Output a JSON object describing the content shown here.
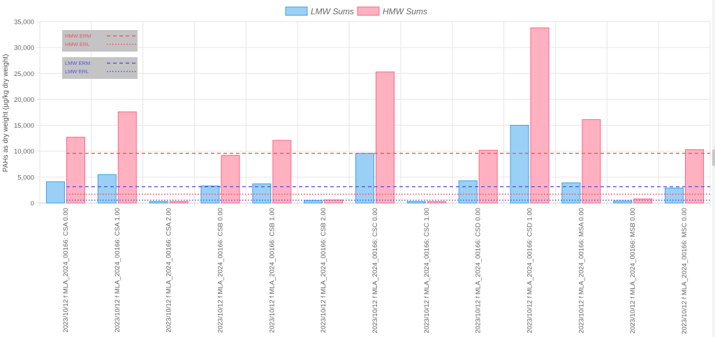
{
  "chart_data": {
    "type": "bar",
    "ylabel": "PAHs as dry weight (µg/kg dry weight)",
    "xlabel": "",
    "ylim": [
      0,
      35000
    ],
    "ytick_step": 5000,
    "ytick_labels": [
      "0",
      "5,000",
      "10,000",
      "15,000",
      "20,000",
      "25,000",
      "30,000",
      "35,000"
    ],
    "grid": true,
    "legend_position": "top-center",
    "categories": [
      "2023/10/12 f MLA_2024_00166: CSA 0.00",
      "2023/10/12 f MLA_2024_00166: CSA 1.00",
      "2023/10/12 f MLA_2024_00166: CSA 2.00",
      "2023/10/12 f MLA_2024_00166: CSB 0.00",
      "2023/10/12 f MLA_2024_00166: CSB 1.00",
      "2023/10/12 f MLA_2024_00166: CSB 2.00",
      "2023/10/12 f MLA_2024_00166: CSC 0.00",
      "2023/10/12 f MLA_2024_00166: CSC 1.00",
      "2023/10/12 f MLA_2024_00166: CSD 0.00",
      "2023/10/12 f MLA_2024_00166: CSD 1.00",
      "2023/10/12 f MLA_2024_00166: MSA 0.00",
      "2023/10/12 f MLA_2024_00166: MSB 0.00",
      "2023/10/12 f MLA_2024_00166: MSC 0.00"
    ],
    "series": [
      {
        "name": "LMW Sums",
        "fill": "#9ad0f5",
        "stroke": "#36a2eb",
        "values": [
          4100,
          5500,
          300,
          3300,
          3700,
          500,
          9600,
          300,
          4300,
          15000,
          3900,
          400,
          2900
        ]
      },
      {
        "name": "HMW Sums",
        "fill": "#ffb1c1",
        "stroke": "#ff6384",
        "values": [
          12700,
          17600,
          300,
          9200,
          12100,
          600,
          25300,
          300,
          10200,
          33800,
          16100,
          800,
          10300
        ]
      }
    ],
    "reference_lines": [
      {
        "label": "HMW ERM",
        "value": 9600,
        "color": "#e05a67",
        "style": "dashed"
      },
      {
        "label": "HMW ERL",
        "value": 1700,
        "color": "#e05a67",
        "style": "dotted"
      },
      {
        "label": "LMW ERM",
        "value": 3160,
        "color": "#5b55d6",
        "style": "dashed"
      },
      {
        "label": "LMW ERL",
        "value": 552,
        "color": "#5b55d6",
        "style": "dotted"
      }
    ],
    "reference_box_color": "#c4c4c4"
  }
}
